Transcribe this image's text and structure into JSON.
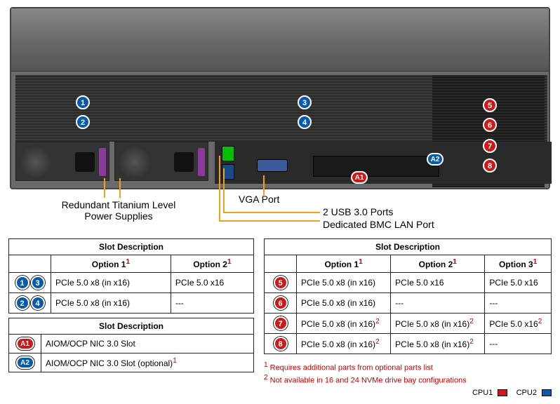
{
  "colors": {
    "cpu1": "#cc1a1a",
    "cpu2": "#0a5aaa",
    "callout": "#f0a020",
    "footnote": "#cc0000"
  },
  "badges": {
    "b1": "1",
    "b2": "2",
    "b3": "3",
    "b4": "4",
    "b5": "5",
    "b6": "6",
    "b7": "7",
    "b8": "8",
    "a1": "A1",
    "a2": "A2"
  },
  "callouts": {
    "psu": "Redundant Titanium Level\nPower Supplies",
    "vga": "VGA Port",
    "usb": "2 USB 3.0 Ports",
    "bmc": "Dedicated BMC LAN Port"
  },
  "table_left_1": {
    "header": "Slot Description",
    "cols": [
      "Option 1",
      "Option 2"
    ],
    "rows": [
      {
        "badges": [
          "1",
          "3"
        ],
        "color": "cpu2",
        "cells": [
          "PCIe 5.0 x8 (in x16)",
          "PCIe 5.0 x16"
        ]
      },
      {
        "badges": [
          "2",
          "4"
        ],
        "color": "cpu2",
        "cells": [
          "PCIe 5.0 x8 (in x16)",
          "---"
        ]
      }
    ]
  },
  "table_left_2": {
    "header": "Slot Description",
    "rows": [
      {
        "badge": "A1",
        "color": "cpu1",
        "cell": "AIOM/OCP NIC 3.0 Slot",
        "sup": ""
      },
      {
        "badge": "A2",
        "color": "cpu2",
        "cell": "AIOM/OCP NIC 3.0 Slot (optional)",
        "sup": "1"
      }
    ]
  },
  "table_right": {
    "header": "Slot Description",
    "cols": [
      "Option 1",
      "Option 2",
      "Option 3"
    ],
    "rows": [
      {
        "badge": "5",
        "color": "cpu1",
        "cells": [
          {
            "t": "PCIe 5.0 x8 (in x16)",
            "s": ""
          },
          {
            "t": "PCIe 5.0 x16",
            "s": ""
          },
          {
            "t": "PCIe 5.0 x16",
            "s": ""
          }
        ]
      },
      {
        "badge": "6",
        "color": "cpu1",
        "cells": [
          {
            "t": "PCIe 5.0 x8 (in x16)",
            "s": ""
          },
          {
            "t": "---",
            "s": ""
          },
          {
            "t": "---",
            "s": ""
          }
        ]
      },
      {
        "badge": "7",
        "color": "cpu1",
        "cells": [
          {
            "t": "PCIe 5.0 x8 (in x16)",
            "s": "2"
          },
          {
            "t": "PCIe 5.0 x8 (in x16)",
            "s": "2"
          },
          {
            "t": "PCIe 5.0 x16",
            "s": "2"
          }
        ]
      },
      {
        "badge": "8",
        "color": "cpu1",
        "cells": [
          {
            "t": "PCIe 5.0 x8 (in x16)",
            "s": "2"
          },
          {
            "t": "PCIe 5.0 x8 (in x16)",
            "s": "2"
          },
          {
            "t": "---",
            "s": ""
          }
        ]
      }
    ]
  },
  "footnotes": {
    "f1": "Requires additional parts from optional parts list",
    "f2": "Not available in 16 and 24 NVMe drive bay configurations"
  },
  "legend": {
    "cpu1": "CPU1",
    "cpu2": "CPU2"
  }
}
